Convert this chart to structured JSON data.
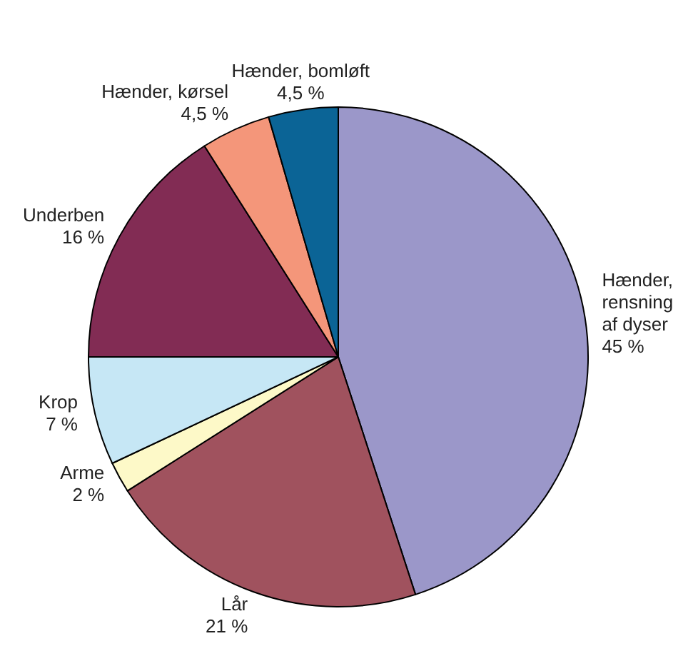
{
  "chart_data": {
    "type": "pie",
    "categories": [
      "Hænder, rensning af dyser",
      "Lår",
      "Arme",
      "Krop",
      "Underben",
      "Hænder, kørsel",
      "Hænder, bomløft"
    ],
    "values": [
      45,
      21,
      2,
      7,
      16,
      4.5,
      4.5
    ],
    "value_labels": [
      "45 %",
      "21 %",
      "2 %",
      "7 %",
      "16 %",
      "4,5 %",
      "4,5 %"
    ],
    "colors": [
      "#9b97c9",
      "#a0525e",
      "#fdf9c8",
      "#c6e7f5",
      "#822c54",
      "#f4967a",
      "#0b6496"
    ]
  }
}
